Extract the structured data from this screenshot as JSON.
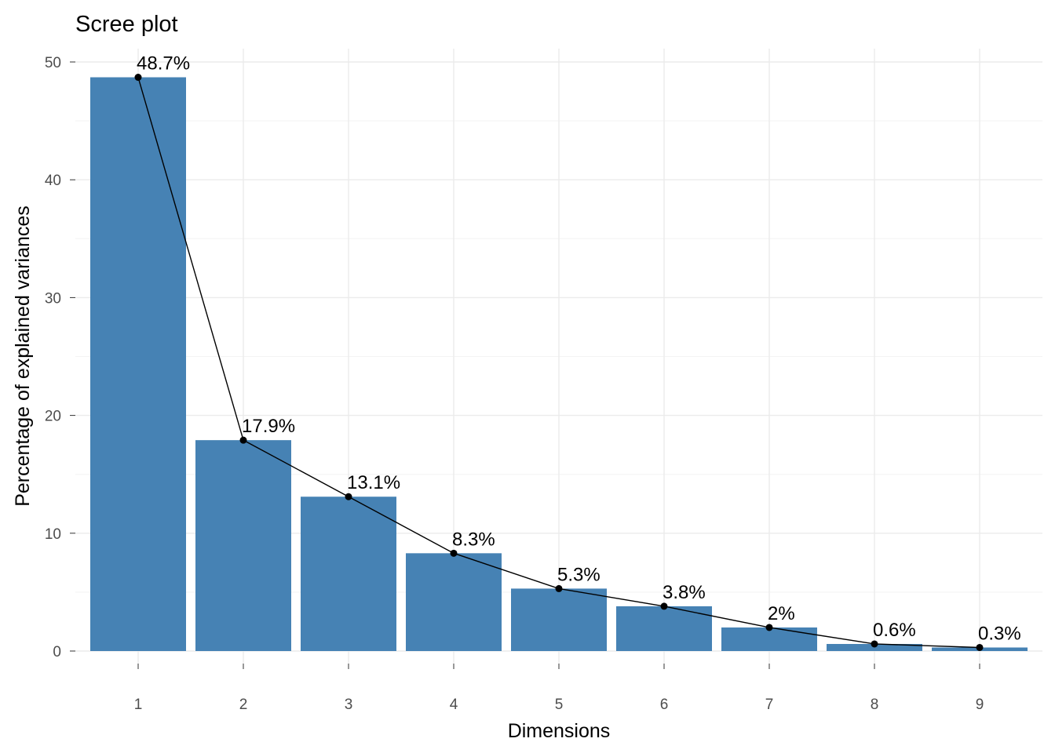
{
  "chart_data": {
    "type": "bar",
    "title": "Scree plot",
    "xlabel": "Dimensions",
    "ylabel": "Percentage of explained variances",
    "categories": [
      "1",
      "2",
      "3",
      "4",
      "5",
      "6",
      "7",
      "8",
      "9"
    ],
    "values": [
      48.7,
      17.9,
      13.1,
      8.3,
      5.3,
      3.8,
      2.0,
      0.6,
      0.3
    ],
    "data_labels": [
      "48.7%",
      "17.9%",
      "13.1%",
      "8.3%",
      "5.3%",
      "3.8%",
      "2%",
      "0.6%",
      "0.3%"
    ],
    "line_overlay": true,
    "ylim": [
      0,
      50
    ],
    "y_ticks": [
      0,
      10,
      20,
      30,
      40,
      50
    ],
    "grid": true,
    "bar_color": "#4682b4",
    "line_color": "#000000"
  }
}
